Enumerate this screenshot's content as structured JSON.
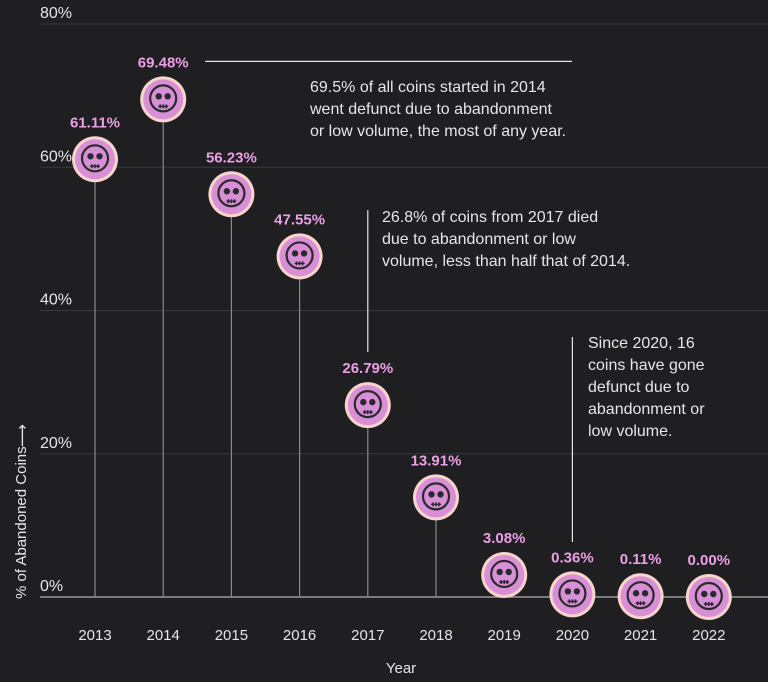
{
  "chart_data": {
    "type": "scatter",
    "title": "",
    "xlabel": "Year",
    "ylabel": "% of Abandoned Coins",
    "ylabel_arrow": "⟶",
    "categories": [
      "2013",
      "2014",
      "2015",
      "2016",
      "2017",
      "2018",
      "2019",
      "2020",
      "2021",
      "2022"
    ],
    "values": [
      61.11,
      69.48,
      56.23,
      47.55,
      26.79,
      13.91,
      3.08,
      0.36,
      0.11,
      0.0
    ],
    "value_labels": [
      "61.11%",
      "69.48%",
      "56.23%",
      "47.55%",
      "26.79%",
      "13.91%",
      "3.08%",
      "0.36%",
      "0.11%",
      "0.00%"
    ],
    "ylim": [
      0,
      80
    ],
    "yticks": [
      0,
      20,
      40,
      60,
      80
    ],
    "ytick_labels": [
      "0%",
      "20%",
      "40%",
      "60%",
      "80%"
    ],
    "grid": true,
    "marker": "skull",
    "annotations": [
      {
        "year": "2014",
        "lines": [
          "69.5% of all coins started in 2014",
          "went defunct due to abandonment",
          "or low volume, the most of any year."
        ]
      },
      {
        "year": "2017",
        "lines": [
          "26.8% of coins from 2017 died",
          "due to abandonment or low",
          "volume, less than half that of 2014."
        ]
      },
      {
        "year": "2020",
        "lines": [
          "Since 2020, 16",
          "coins have gone",
          "defunct due to",
          "abandonment or",
          "low volume."
        ]
      }
    ]
  },
  "colors": {
    "background": "#1f1f22",
    "marker_fill": "#d98fd6",
    "marker_ring": "#f7d4cc",
    "marker_face": "#2a2a2e",
    "label": "#ec9fe6",
    "text": "#e6e6e6",
    "grid": "#3a3a3e",
    "stem": "#8a8a8e"
  }
}
